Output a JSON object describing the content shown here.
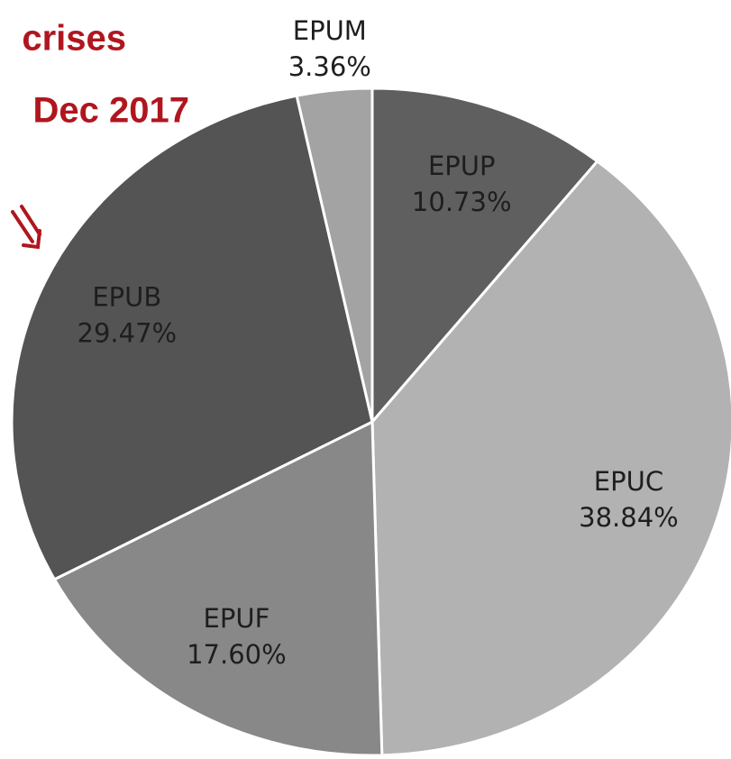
{
  "chart_data": {
    "type": "pie",
    "annotations": [
      "crises",
      "Dec 2017"
    ],
    "categories": [
      "EPUP",
      "EPUC",
      "EPUF",
      "EPUB",
      "EPUM"
    ],
    "values": [
      10.73,
      38.84,
      17.6,
      29.47,
      3.36
    ],
    "value_labels": [
      "10.73%",
      "38.84%",
      "17.60%",
      "29.47%",
      "3.36%"
    ],
    "colors": [
      "#5f5f5f",
      "#b2b2b2",
      "#888888",
      "#545454",
      "#a3a3a3"
    ]
  }
}
